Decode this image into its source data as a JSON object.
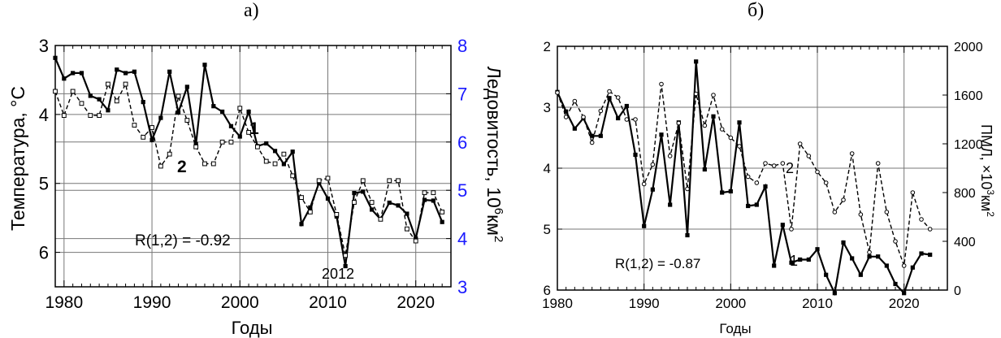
{
  "labels": {
    "a": "а)",
    "b": "б)"
  },
  "chart_data": [
    {
      "type": "line",
      "panel_label": "а)",
      "xlabel": "Годы",
      "ylabel_left": "Температура, °C",
      "ylabel_right": "Ледовитость, 10⁶км²",
      "ylabel_right_main": "Ледовитость, 10",
      "ylabel_right_exp": "6",
      "ylabel_right_unit": "км",
      "ylabel_right_sq": "2",
      "xlim": [
        1979,
        2024
      ],
      "ylim_left": [
        3,
        6.5
      ],
      "ylim_left_inverted": true,
      "ylim_right": [
        3,
        8
      ],
      "x_ticks": [
        1980,
        1990,
        2000,
        2010,
        2020
      ],
      "y_left_ticks": [
        3,
        4,
        5,
        6
      ],
      "y_right_ticks": [
        3,
        4,
        5,
        6,
        7,
        8
      ],
      "grid": true,
      "right_axis_color": "#1a1aff",
      "annotations": {
        "r_text": "R(1,2) = -0.92",
        "year_text": "2012",
        "series1_label": "1",
        "series2_label": "2"
      },
      "series": [
        {
          "name": "1",
          "axis": "left",
          "style": "solid",
          "marker": "filled-square",
          "x": [
            1979,
            1980,
            1981,
            1982,
            1983,
            1984,
            1985,
            1986,
            1987,
            1988,
            1989,
            1990,
            1991,
            1992,
            1993,
            1994,
            1995,
            1996,
            1997,
            1998,
            1999,
            2000,
            2001,
            2002,
            2003,
            2004,
            2005,
            2006,
            2007,
            2008,
            2009,
            2010,
            2011,
            2012,
            2013,
            2014,
            2015,
            2016,
            2017,
            2018,
            2019,
            2020,
            2021,
            2022,
            2023
          ],
          "values": [
            3.18,
            3.48,
            3.4,
            3.4,
            3.73,
            3.78,
            3.94,
            3.35,
            3.4,
            3.38,
            3.82,
            4.37,
            4.05,
            3.38,
            3.97,
            3.6,
            4.43,
            3.28,
            3.88,
            3.96,
            4.17,
            4.32,
            3.96,
            4.46,
            4.42,
            4.53,
            4.72,
            4.54,
            5.59,
            5.35,
            4.99,
            5.22,
            5.48,
            6.2,
            5.14,
            5.12,
            5.38,
            5.52,
            5.28,
            5.32,
            5.44,
            5.8,
            5.24,
            5.25,
            5.56
          ]
        },
        {
          "name": "2",
          "axis": "right",
          "style": "dashed",
          "marker": "open-square",
          "x": [
            1979,
            1980,
            1981,
            1982,
            1983,
            1984,
            1985,
            1986,
            1987,
            1988,
            1989,
            1990,
            1991,
            1992,
            1993,
            1994,
            1995,
            1996,
            1997,
            1998,
            1999,
            2000,
            2001,
            2002,
            2003,
            2004,
            2005,
            2006,
            2007,
            2008,
            2009,
            2010,
            2011,
            2012,
            2013,
            2014,
            2015,
            2016,
            2017,
            2018,
            2019,
            2020,
            2021,
            2022,
            2023
          ],
          "values": [
            7.05,
            6.55,
            7.05,
            6.8,
            6.55,
            6.55,
            7.2,
            6.85,
            7.2,
            6.35,
            6.1,
            6.3,
            5.5,
            5.75,
            6.95,
            6.45,
            5.9,
            5.55,
            5.55,
            6.0,
            6.0,
            6.7,
            6.2,
            5.9,
            5.6,
            5.55,
            5.75,
            5.3,
            4.85,
            4.55,
            5.2,
            5.25,
            4.5,
            3.65,
            4.75,
            5.2,
            4.75,
            4.4,
            5.2,
            5.2,
            4.2,
            3.95,
            4.95,
            4.95,
            4.55
          ]
        }
      ]
    },
    {
      "type": "line",
      "panel_label": "б)",
      "xlabel": "Годы",
      "ylabel_right": "ПМЛ, ×10³км²",
      "ylabel_right_main": "ПМЛ, ×10",
      "ylabel_right_exp": "3",
      "ylabel_right_unit": "км",
      "ylabel_right_sq": "2",
      "xlim": [
        1980,
        2025
      ],
      "ylim_left": [
        2,
        6
      ],
      "ylim_left_inverted": true,
      "ylim_right": [
        0,
        2000
      ],
      "x_ticks": [
        1980,
        1990,
        2000,
        2010,
        2020
      ],
      "y_left_ticks": [
        2,
        3,
        4,
        5,
        6
      ],
      "y_right_ticks": [
        0,
        400,
        800,
        1200,
        1600,
        2000
      ],
      "grid": true,
      "annotations": {
        "r_text": "R(1,2) = -0.87",
        "series1_label": "1",
        "series2_label": "2"
      },
      "series": [
        {
          "name": "1",
          "axis": "left",
          "style": "solid",
          "marker": "filled-square",
          "x": [
            1980,
            1981,
            1982,
            1983,
            1984,
            1985,
            1986,
            1987,
            1988,
            1989,
            1990,
            1991,
            1992,
            1993,
            1994,
            1995,
            1996,
            1997,
            1998,
            1999,
            2000,
            2001,
            2002,
            2003,
            2004,
            2005,
            2006,
            2007,
            2008,
            2009,
            2010,
            2011,
            2012,
            2013,
            2014,
            2015,
            2016,
            2017,
            2018,
            2019,
            2020,
            2021,
            2022,
            2023
          ],
          "values": [
            2.75,
            3.07,
            3.35,
            3.18,
            3.47,
            3.47,
            2.85,
            3.18,
            2.98,
            3.78,
            4.95,
            4.35,
            3.45,
            4.6,
            3.25,
            5.1,
            2.25,
            4.02,
            3.15,
            4.4,
            4.38,
            3.25,
            4.62,
            4.6,
            4.3,
            5.6,
            4.93,
            5.55,
            5.5,
            5.5,
            5.33,
            5.75,
            6.05,
            5.22,
            5.48,
            5.75,
            5.45,
            5.45,
            5.6,
            5.9,
            6.05,
            5.63,
            5.4,
            5.42
          ]
        },
        {
          "name": "2",
          "axis": "right",
          "style": "dashed",
          "marker": "open-circle",
          "x": [
            1980,
            1981,
            1982,
            1983,
            1984,
            1985,
            1986,
            1987,
            1988,
            1989,
            1990,
            1991,
            1992,
            1993,
            1994,
            1995,
            1996,
            1997,
            1998,
            1999,
            2000,
            2001,
            2002,
            2003,
            2004,
            2005,
            2006,
            2007,
            2008,
            2009,
            2010,
            2011,
            2012,
            2013,
            2014,
            2015,
            2016,
            2017,
            2018,
            2019,
            2020,
            2021,
            2022,
            2023
          ],
          "values": [
            1620,
            1420,
            1550,
            1420,
            1210,
            1470,
            1630,
            1580,
            1400,
            1400,
            870,
            1030,
            1690,
            1100,
            1370,
            830,
            1610,
            1350,
            1600,
            1320,
            1250,
            1180,
            930,
            880,
            1040,
            1020,
            1040,
            500,
            1200,
            1100,
            970,
            880,
            640,
            740,
            1120,
            620,
            310,
            1040,
            640,
            400,
            200,
            800,
            580,
            500
          ]
        }
      ]
    }
  ]
}
